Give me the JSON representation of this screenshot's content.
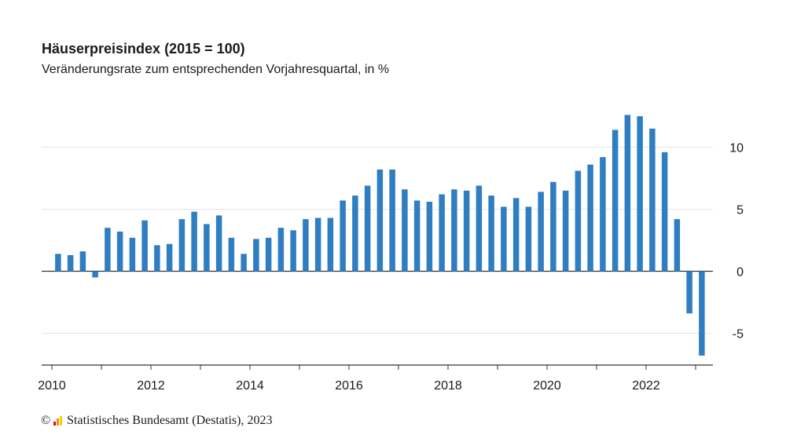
{
  "title": "Häuserpreisindex (2015 = 100)",
  "subtitle": "Veränderungsrate zum entsprechenden Vorjahresquartal, in %",
  "footer": {
    "copyright_symbol": "©",
    "source": "Statistisches Bundesamt (Destatis), 2023"
  },
  "colors": {
    "bar": "#2f7ec1",
    "grid": "#e6e6e6",
    "axis": "#333333",
    "logo": [
      "#e30613",
      "#f39200",
      "#ffcc00",
      "#1a1a1a"
    ]
  },
  "chart_data": {
    "type": "bar",
    "title": "Häuserpreisindex (2015 = 100)",
    "subtitle": "Veränderungsrate zum entsprechenden Vorjahresquartal, in %",
    "xlabel": "",
    "ylabel": "",
    "ylim": [
      -7.5,
      14
    ],
    "yticks": [
      -5,
      0,
      5,
      10
    ],
    "ytick_labels": [
      "-5",
      "0",
      "5",
      "10"
    ],
    "x_year_range": [
      2010,
      2023
    ],
    "xtick_labels": [
      "2010",
      "2012",
      "2014",
      "2016",
      "2018",
      "2020",
      "2022"
    ],
    "grid": true,
    "legend": "none",
    "categories": [
      "2010 Q1",
      "2010 Q2",
      "2010 Q3",
      "2010 Q4",
      "2011 Q1",
      "2011 Q2",
      "2011 Q3",
      "2011 Q4",
      "2012 Q1",
      "2012 Q2",
      "2012 Q3",
      "2012 Q4",
      "2013 Q1",
      "2013 Q2",
      "2013 Q3",
      "2013 Q4",
      "2014 Q1",
      "2014 Q2",
      "2014 Q3",
      "2014 Q4",
      "2015 Q1",
      "2015 Q2",
      "2015 Q3",
      "2015 Q4",
      "2016 Q1",
      "2016 Q2",
      "2016 Q3",
      "2016 Q4",
      "2017 Q1",
      "2017 Q2",
      "2017 Q3",
      "2017 Q4",
      "2018 Q1",
      "2018 Q2",
      "2018 Q3",
      "2018 Q4",
      "2019 Q1",
      "2019 Q2",
      "2019 Q3",
      "2019 Q4",
      "2020 Q1",
      "2020 Q2",
      "2020 Q3",
      "2020 Q4",
      "2021 Q1",
      "2021 Q2",
      "2021 Q3",
      "2021 Q4",
      "2022 Q1",
      "2022 Q2",
      "2022 Q3",
      "2022 Q4",
      "2023 Q1"
    ],
    "values": [
      1.4,
      1.3,
      1.6,
      -0.5,
      3.5,
      3.2,
      2.7,
      4.1,
      2.1,
      2.2,
      4.2,
      4.8,
      3.8,
      4.5,
      2.7,
      1.4,
      2.6,
      2.7,
      3.5,
      3.3,
      4.2,
      4.3,
      4.3,
      5.7,
      6.1,
      6.9,
      8.2,
      8.2,
      6.6,
      5.7,
      5.6,
      6.2,
      6.6,
      6.5,
      6.9,
      6.1,
      5.2,
      5.9,
      5.2,
      6.4,
      7.2,
      6.5,
      8.1,
      8.6,
      9.2,
      11.4,
      12.6,
      12.5,
      11.5,
      9.6,
      4.2,
      -3.4,
      -6.8
    ]
  }
}
